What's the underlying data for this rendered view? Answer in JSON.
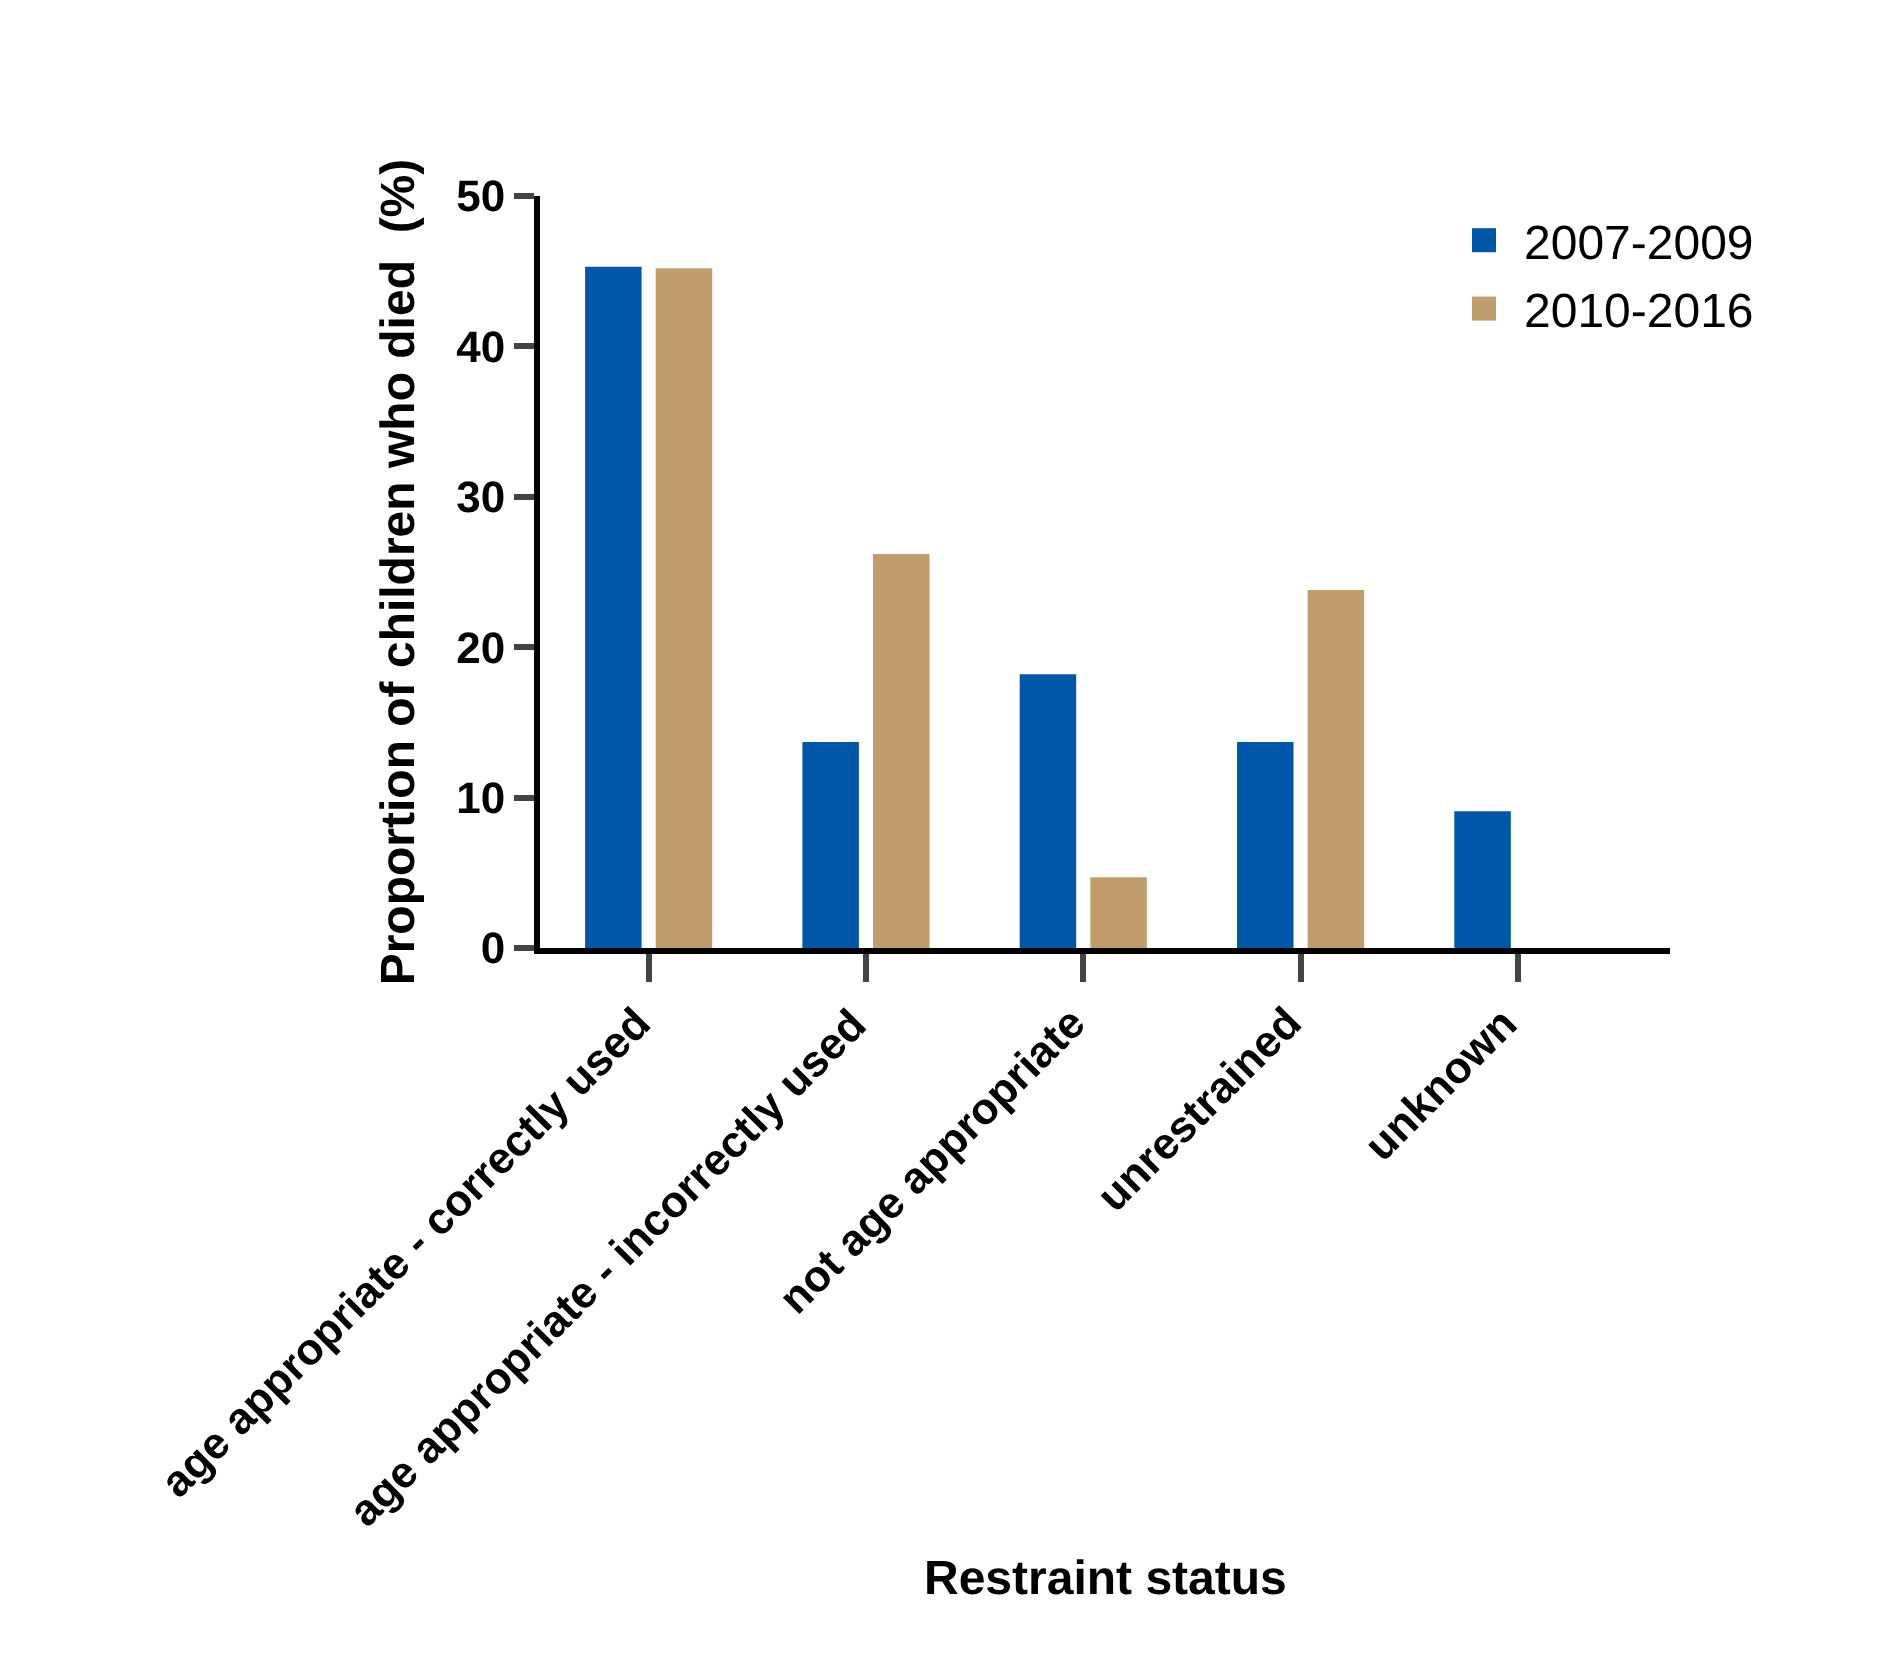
{
  "chart_data": {
    "type": "bar",
    "xlabel": "Restraint status",
    "ylabel": "Proportion of children who died  (%)",
    "categories": [
      "age appropriate - correctly used",
      "age appropriate - incorrectly used",
      "not age appropriate",
      "unrestrained",
      "unknown"
    ],
    "series": [
      {
        "name": "2007-2009",
        "color": "#0056a8",
        "values": [
          45.3,
          13.7,
          18.2,
          13.7,
          9.1
        ]
      },
      {
        "name": "2010-2016",
        "color": "#c09d6c",
        "values": [
          45.2,
          26.2,
          4.7,
          23.8,
          0
        ]
      }
    ],
    "ylim": [
      0,
      50
    ],
    "yticks": [
      0,
      10,
      20,
      30,
      40,
      50
    ],
    "legend": "top right"
  }
}
